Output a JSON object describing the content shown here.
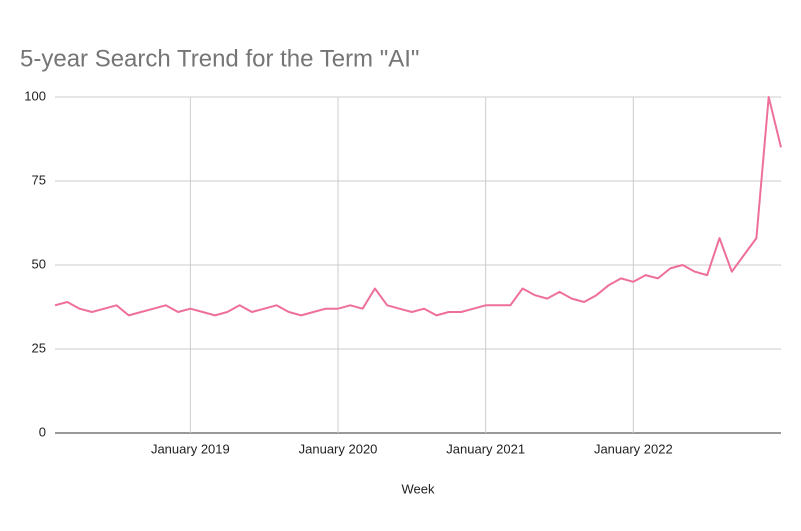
{
  "chart_data": {
    "type": "line",
    "title": "5-year Search Trend for the Term \"AI\"",
    "x_label": "Week",
    "x": [
      "2018-02",
      "2018-03",
      "2018-04",
      "2018-05",
      "2018-06",
      "2018-07",
      "2018-08",
      "2018-09",
      "2018-10",
      "2018-11",
      "2018-12",
      "2019-01",
      "2019-02",
      "2019-03",
      "2019-04",
      "2019-05",
      "2019-06",
      "2019-07",
      "2019-08",
      "2019-09",
      "2019-10",
      "2019-11",
      "2019-12",
      "2020-01",
      "2020-02",
      "2020-03",
      "2020-04",
      "2020-05",
      "2020-06",
      "2020-07",
      "2020-08",
      "2020-09",
      "2020-10",
      "2020-11",
      "2020-12",
      "2021-01",
      "2021-02",
      "2021-03",
      "2021-04",
      "2021-05",
      "2021-06",
      "2021-07",
      "2021-08",
      "2021-09",
      "2021-10",
      "2021-11",
      "2021-12",
      "2022-01",
      "2022-02",
      "2022-03",
      "2022-04",
      "2022-05",
      "2022-06",
      "2022-07",
      "2022-08",
      "2022-09",
      "2022-10",
      "2022-11",
      "2022-12",
      "2023-01"
    ],
    "series": [
      {
        "name": "AI",
        "color": "#ee6f9c",
        "values": [
          38,
          39,
          37,
          36,
          37,
          38,
          35,
          36,
          37,
          38,
          36,
          37,
          36,
          35,
          36,
          38,
          36,
          37,
          38,
          36,
          35,
          36,
          37,
          37,
          38,
          37,
          43,
          38,
          37,
          36,
          37,
          35,
          36,
          36,
          37,
          38,
          38,
          38,
          43,
          41,
          40,
          42,
          40,
          39,
          41,
          44,
          46,
          45,
          47,
          46,
          49,
          50,
          48,
          47,
          58,
          48,
          53,
          58,
          100,
          85
        ]
      }
    ],
    "xlim": [
      "2018-02",
      "2023-01"
    ],
    "xticks": [
      {
        "value": "2019-01",
        "label": "January 2019"
      },
      {
        "value": "2020-01",
        "label": "January 2020"
      },
      {
        "value": "2021-01",
        "label": "January 2021"
      },
      {
        "value": "2022-01",
        "label": "January 2022"
      }
    ],
    "ylim": [
      0,
      100
    ],
    "yticks": [
      0,
      25,
      50,
      75,
      100
    ],
    "grid": true
  }
}
